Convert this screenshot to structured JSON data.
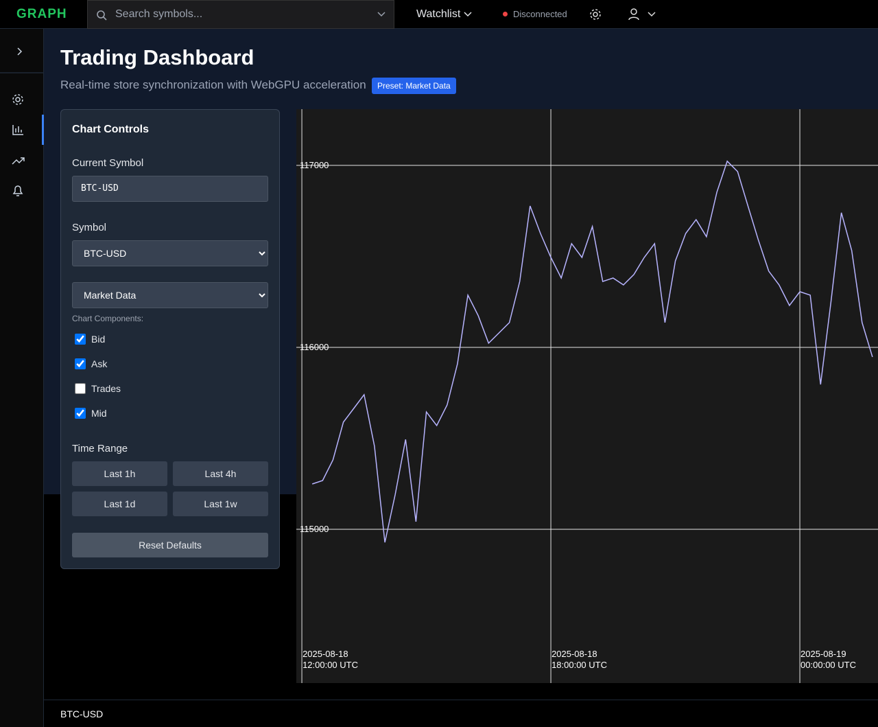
{
  "topbar": {
    "logo": "GRAPH",
    "search_placeholder": "Search symbols...",
    "watchlist": "Watchlist",
    "status": "Disconnected"
  },
  "header": {
    "title": "Trading Dashboard",
    "subtitle": "Real-time store synchronization with WebGPU acceleration",
    "badge": "Preset: Market Data"
  },
  "controls": {
    "title": "Chart Controls",
    "current_symbol_label": "Current Symbol",
    "current_symbol_value": "BTC-USD",
    "symbol_label": "Symbol",
    "symbol_select": "BTC-USD",
    "preset_select": "Market Data",
    "components_label": "Chart Components:",
    "components": [
      {
        "label": "Bid",
        "checked": true
      },
      {
        "label": "Ask",
        "checked": true
      },
      {
        "label": "Trades",
        "checked": false
      },
      {
        "label": "Mid",
        "checked": true
      }
    ],
    "time_range_label": "Time Range",
    "time_ranges": [
      "Last 1h",
      "Last 4h",
      "Last 1d",
      "Last 1w"
    ],
    "reset": "Reset Defaults"
  },
  "chart_data": {
    "type": "line",
    "color": "#b7b4ff",
    "grid": true,
    "x": [
      "2025-08-18 12:15:00",
      "2025-08-18 12:30:00",
      "2025-08-18 12:45:00",
      "2025-08-18 13:00:00",
      "2025-08-18 13:15:00",
      "2025-08-18 13:30:00",
      "2025-08-18 13:45:00",
      "2025-08-18 14:00:00",
      "2025-08-18 14:15:00",
      "2025-08-18 14:30:00",
      "2025-08-18 14:45:00",
      "2025-08-18 15:00:00",
      "2025-08-18 15:15:00",
      "2025-08-18 15:30:00",
      "2025-08-18 15:45:00",
      "2025-08-18 16:00:00",
      "2025-08-18 16:15:00",
      "2025-08-18 16:30:00",
      "2025-08-18 16:45:00",
      "2025-08-18 17:00:00",
      "2025-08-18 17:15:00",
      "2025-08-18 17:30:00",
      "2025-08-18 17:45:00",
      "2025-08-18 18:00:00",
      "2025-08-18 18:15:00",
      "2025-08-18 18:30:00",
      "2025-08-18 18:45:00",
      "2025-08-18 19:00:00",
      "2025-08-18 19:15:00",
      "2025-08-18 19:30:00",
      "2025-08-18 19:45:00",
      "2025-08-18 20:00:00",
      "2025-08-18 20:15:00",
      "2025-08-18 20:30:00",
      "2025-08-18 20:45:00",
      "2025-08-18 21:00:00",
      "2025-08-18 21:15:00",
      "2025-08-18 21:30:00",
      "2025-08-18 21:45:00",
      "2025-08-18 22:00:00",
      "2025-08-18 22:15:00",
      "2025-08-18 22:30:00",
      "2025-08-18 22:45:00",
      "2025-08-18 23:00:00",
      "2025-08-18 23:15:00",
      "2025-08-18 23:30:00",
      "2025-08-18 23:45:00",
      "2025-08-19 00:00:00",
      "2025-08-19 00:15:00",
      "2025-08-19 00:30:00",
      "2025-08-19 00:45:00",
      "2025-08-19 01:00:00",
      "2025-08-19 01:15:00",
      "2025-08-19 01:30:00",
      "2025-08-19 01:45:00"
    ],
    "values": [
      115249,
      115268,
      115381,
      115589,
      115664,
      115740,
      115457,
      114928,
      115192,
      115494,
      115042,
      115645,
      115570,
      115683,
      115909,
      116287,
      116174,
      116023,
      116079,
      116136,
      116362,
      116777,
      116626,
      116494,
      116381,
      116570,
      116494,
      116664,
      116362,
      116381,
      116343,
      116400,
      116494,
      116570,
      116136,
      116475,
      116626,
      116702,
      116608,
      116853,
      117023,
      116966,
      116777,
      116589,
      116419,
      116343,
      116230,
      116306,
      116287,
      115796,
      116249,
      116740,
      116532,
      116136,
      115947
    ],
    "xlim": [
      "2025-08-18 11:52:00",
      "2025-08-19 01:53:00"
    ],
    "xticks": [
      {
        "value": "2025-08-18 12:00:00",
        "label": "2025-08-18\n12:00:00 UTC"
      },
      {
        "value": "2025-08-18 18:00:00",
        "label": "2025-08-18\n18:00:00 UTC"
      },
      {
        "value": "2025-08-19 00:00:00",
        "label": "2025-08-19\n00:00:00 UTC"
      }
    ],
    "ylim": [
      114155,
      117309
    ],
    "yticks": [
      115000,
      116000,
      117000
    ]
  },
  "footer": {
    "symbol": "BTC-USD"
  }
}
